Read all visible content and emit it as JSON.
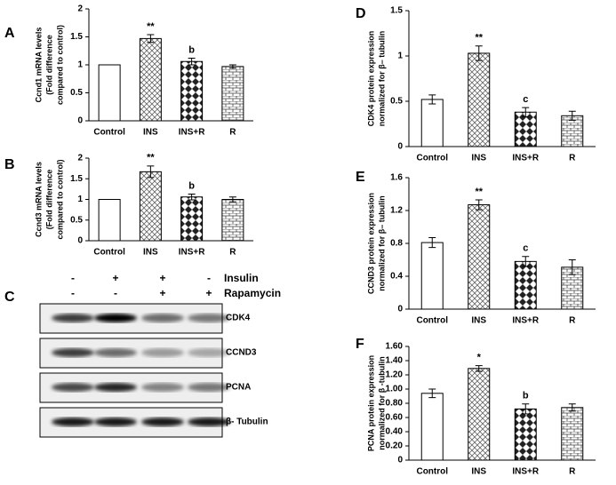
{
  "chart_data": [
    {
      "type": "bar",
      "panel_label": "A",
      "ylabel": [
        "Ccnd1 mRNA levels",
        "(Fold difference",
        "compared to control)"
      ],
      "categories": [
        "Control",
        "INS",
        "INS+R",
        "R"
      ],
      "values": [
        1,
        1.47,
        1.06,
        0.97
      ],
      "errors": [
        0,
        0.07,
        0.06,
        0.03
      ],
      "annotations": [
        null,
        "**",
        "b",
        null
      ],
      "ylim": [
        0,
        2
      ],
      "yticks": [
        0,
        0.5,
        1,
        1.5,
        2
      ]
    },
    {
      "type": "bar",
      "panel_label": "B",
      "ylabel": [
        "Ccnd3 mRNA levels",
        "(Fold difference",
        "compared to control)"
      ],
      "categories": [
        "Control",
        "INS",
        "INS+R",
        "R"
      ],
      "values": [
        1,
        1.67,
        1.06,
        1.0
      ],
      "errors": [
        0,
        0.14,
        0.07,
        0.06
      ],
      "annotations": [
        null,
        "**",
        "b",
        null
      ],
      "ylim": [
        0,
        2
      ],
      "yticks": [
        0,
        0.5,
        1,
        1.5,
        2
      ]
    },
    {
      "type": "bar",
      "panel_label": "D",
      "ylabel": [
        "CDK4  protein expression",
        "normalized for β– tubulin"
      ],
      "categories": [
        "Control",
        "INS",
        "INS+R",
        "R"
      ],
      "values": [
        0.52,
        1.03,
        0.38,
        0.34
      ],
      "errors": [
        0.05,
        0.08,
        0.05,
        0.05
      ],
      "annotations": [
        null,
        "**",
        "c",
        null
      ],
      "ylim": [
        0,
        1.5
      ],
      "yticks": [
        0,
        0.5,
        1,
        1.5
      ]
    },
    {
      "type": "bar",
      "panel_label": "E",
      "ylabel": [
        "CCND3 protein expression",
        "normalized for β– tubulin"
      ],
      "categories": [
        "Control",
        "INS",
        "INS+R",
        "R"
      ],
      "values": [
        0.81,
        1.27,
        0.58,
        0.51
      ],
      "errors": [
        0.06,
        0.06,
        0.06,
        0.09
      ],
      "annotations": [
        null,
        "**",
        "c",
        null
      ],
      "ylim": [
        0,
        1.6
      ],
      "yticks": [
        0,
        0.4,
        0.8,
        1.2,
        1.6
      ]
    },
    {
      "type": "bar",
      "panel_label": "F",
      "ylabel": [
        "PCNA protein expression",
        "normalized for β -tubulin"
      ],
      "categories": [
        "Control",
        "INS",
        "INS+R",
        "R"
      ],
      "values": [
        0.94,
        1.29,
        0.72,
        0.74
      ],
      "errors": [
        0.06,
        0.04,
        0.07,
        0.05
      ],
      "annotations": [
        null,
        "*",
        "b",
        null
      ],
      "ylim": [
        0,
        1.6
      ],
      "yticks": [
        0,
        {
          "value": 0.2,
          "label": "0.20"
        },
        {
          "value": 0.4,
          "label": "0.40"
        },
        {
          "value": 0.6,
          "label": "0.60"
        },
        {
          "value": 0.8,
          "label": "0.80"
        },
        {
          "value": 1,
          "label": "1.00"
        },
        {
          "value": 1.2,
          "label": "1.20"
        },
        {
          "value": 1.4,
          "label": "1.40"
        },
        {
          "value": 1.6,
          "label": "1.60"
        }
      ]
    }
  ],
  "blot": {
    "panel_label": "C",
    "treatments": [
      {
        "name": "Insulin",
        "signs": [
          "-",
          "+",
          "+",
          "-"
        ]
      },
      {
        "name": "Rapamycin",
        "signs": [
          "-",
          "-",
          "+",
          "+"
        ]
      }
    ],
    "rows": [
      "CDK4",
      "CCND3",
      "PCNA",
      "β- Tubulin"
    ]
  }
}
